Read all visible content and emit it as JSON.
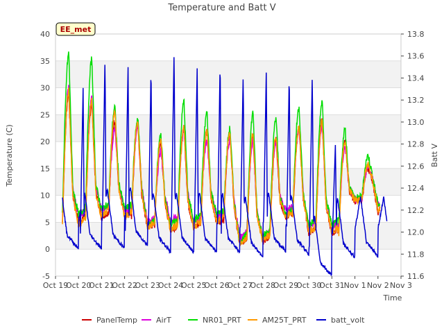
{
  "chart_data": {
    "type": "line",
    "title": "Temperature and Batt V",
    "station_label": "EE_met",
    "xlabel": "Time",
    "ylabel_left": "Temperature (C)",
    "ylabel_right": "Batt V",
    "x_ticks": [
      "Oct 19",
      "Oct 20",
      "Oct 21",
      "Oct 22",
      "Oct 23",
      "Oct 24",
      "Oct 25",
      "Oct 26",
      "Oct 27",
      "Oct 28",
      "Oct 29",
      "Oct 30",
      "Oct 31",
      "Nov 1",
      "Nov 2",
      "Nov 3"
    ],
    "xlim_days": [
      0,
      15
    ],
    "ylim_left": [
      -5,
      40
    ],
    "yticks_left": [
      -5,
      0,
      5,
      10,
      15,
      20,
      25,
      30,
      35,
      40
    ],
    "ylim_right": [
      11.6,
      13.8
    ],
    "yticks_right": [
      11.6,
      11.8,
      12.0,
      12.2,
      12.4,
      12.6,
      12.8,
      13.0,
      13.2,
      13.4,
      13.6,
      13.8
    ],
    "daily_values_note": "approx. daily min / max read from the plot, day index 0 = Oct 19",
    "temperature_days": [
      0.3,
      1,
      2,
      3,
      4,
      5,
      6,
      7,
      8,
      9,
      10,
      11,
      12,
      13,
      14
    ],
    "series": [
      {
        "name": "PanelTemp",
        "color": "#cc0000",
        "axis": "left",
        "daily_max": [
          29,
          27,
          24,
          23,
          20,
          22.5,
          22,
          21.5,
          21,
          20.5,
          22.5,
          24,
          20,
          15,
          9
        ],
        "daily_min": [
          5,
          5,
          6,
          6,
          4,
          3.5,
          4,
          5,
          1,
          1.5,
          6,
          3,
          3,
          9,
          7
        ]
      },
      {
        "name": "AirT",
        "color": "#dd00dd",
        "axis": "left",
        "daily_max": [
          30,
          28,
          22,
          23,
          18,
          22,
          20,
          20,
          20,
          20,
          22,
          23,
          19,
          15,
          9
        ],
        "daily_min": [
          6,
          6,
          7,
          7,
          5,
          5,
          5,
          6,
          2,
          2,
          7,
          4,
          4,
          9,
          8
        ]
      },
      {
        "name": "NR01_PRT",
        "color": "#00dd00",
        "axis": "left",
        "daily_max": [
          36,
          35,
          26,
          24,
          21,
          27,
          25,
          22,
          25,
          24,
          26,
          27,
          22,
          17,
          10
        ],
        "daily_min": [
          6,
          6,
          7,
          7,
          4,
          4,
          5,
          6,
          1,
          2,
          6,
          4,
          4,
          9,
          8
        ]
      },
      {
        "name": "AM25T_PRT",
        "color": "#ff9900",
        "axis": "left",
        "daily_max": [
          29,
          27,
          25,
          23,
          20,
          22,
          21.5,
          21,
          21,
          20.5,
          22,
          23,
          19.5,
          15,
          8.5
        ],
        "daily_min": [
          4,
          4,
          5.5,
          5.5,
          3.5,
          3,
          3.5,
          4.5,
          0.5,
          1,
          5.5,
          2.5,
          2.5,
          8.5,
          7
        ]
      },
      {
        "name": "batt_volt",
        "color": "#0000cc",
        "axis": "right",
        "peak_days": [
          1.2,
          2.15,
          3.15,
          4.15,
          5.15,
          6.15,
          7.15,
          8.15,
          9.15,
          10.15,
          11.15,
          12.15
        ],
        "daily_peak": [
          13.3,
          13.6,
          13.5,
          13.5,
          13.67,
          13.5,
          13.55,
          13.45,
          13.45,
          13.45,
          13.43,
          12.8
        ],
        "night_min": [
          11.85,
          11.85,
          11.85,
          11.88,
          11.82,
          11.82,
          11.82,
          11.82,
          11.78,
          11.82,
          11.8,
          11.6,
          11.77,
          11.78
        ]
      }
    ],
    "legend_position": "bottom"
  }
}
